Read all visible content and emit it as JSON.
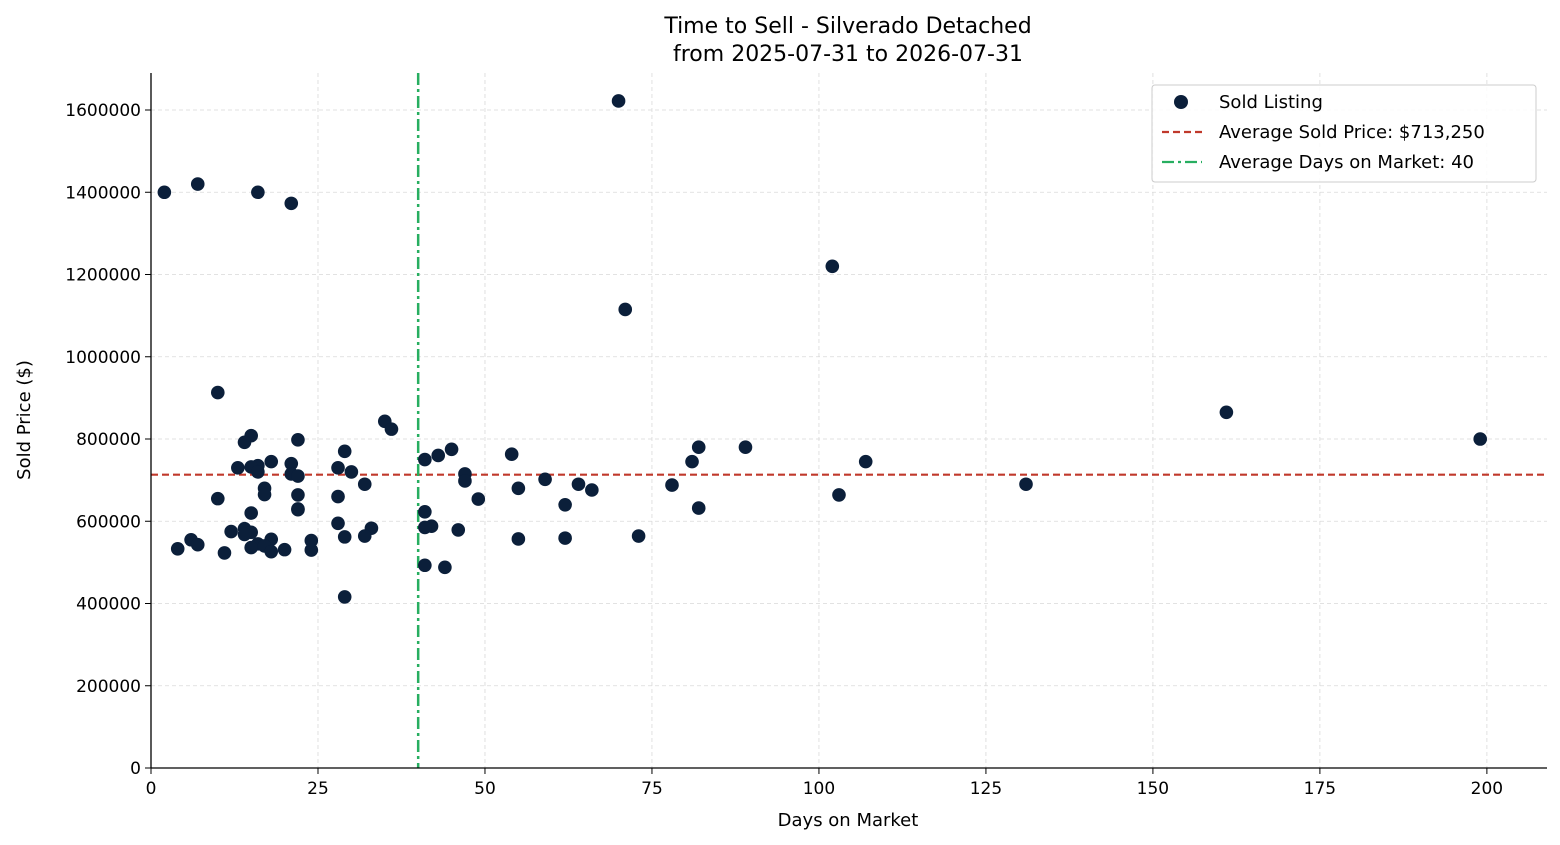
{
  "colors": {
    "points": "#0b1f3a",
    "avg_price_line": "#c0392b",
    "avg_days_line": "#27ae60",
    "grid": "#d9d9d9",
    "axis": "#000000"
  },
  "chart_data": {
    "type": "scatter",
    "title": "Time to Sell - Silverado Detached",
    "subtitle": "from 2025-07-31 to 2026-07-31",
    "xlabel": "Days on Market",
    "ylabel": "Sold Price ($)",
    "xlim": [
      0,
      209
    ],
    "ylim": [
      0,
      1690000
    ],
    "x_ticks": [
      0,
      25,
      50,
      75,
      100,
      125,
      150,
      175,
      200
    ],
    "y_ticks": [
      0,
      200000,
      400000,
      600000,
      800000,
      1000000,
      1200000,
      1400000,
      1600000
    ],
    "grid": true,
    "legend_position": "top-right",
    "series": [
      {
        "name": "Sold Listing",
        "points": [
          [
            2,
            1400000
          ],
          [
            7,
            1420000
          ],
          [
            16,
            1400000
          ],
          [
            21,
            1373000
          ],
          [
            70,
            1622000
          ],
          [
            71,
            1115000
          ],
          [
            102,
            1220000
          ],
          [
            10,
            913000
          ],
          [
            35,
            843000
          ],
          [
            36,
            824000
          ],
          [
            15,
            808000
          ],
          [
            22,
            798000
          ],
          [
            14,
            792000
          ],
          [
            29,
            770000
          ],
          [
            18,
            745000
          ],
          [
            16,
            735000
          ],
          [
            15,
            732000
          ],
          [
            13,
            730000
          ],
          [
            21,
            740000
          ],
          [
            28,
            730000
          ],
          [
            30,
            720000
          ],
          [
            16,
            720000
          ],
          [
            21,
            715000
          ],
          [
            22,
            710000
          ],
          [
            17,
            680000
          ],
          [
            17,
            665000
          ],
          [
            10,
            655000
          ],
          [
            22,
            664000
          ],
          [
            28,
            660000
          ],
          [
            32,
            690000
          ],
          [
            22,
            630000
          ],
          [
            22,
            628000
          ],
          [
            15,
            620000
          ],
          [
            28,
            595000
          ],
          [
            33,
            583000
          ],
          [
            14,
            582000
          ],
          [
            12,
            575000
          ],
          [
            15,
            573000
          ],
          [
            14,
            568000
          ],
          [
            29,
            562000
          ],
          [
            32,
            564000
          ],
          [
            6,
            555000
          ],
          [
            18,
            556000
          ],
          [
            24,
            553000
          ],
          [
            7,
            543000
          ],
          [
            16,
            545000
          ],
          [
            17,
            540000
          ],
          [
            15,
            536000
          ],
          [
            20,
            531000
          ],
          [
            24,
            530000
          ],
          [
            4,
            533000
          ],
          [
            18,
            526000
          ],
          [
            11,
            523000
          ],
          [
            29,
            416000
          ],
          [
            41,
            750000
          ],
          [
            43,
            760000
          ],
          [
            45,
            775000
          ],
          [
            47,
            715000
          ],
          [
            47,
            698000
          ],
          [
            49,
            654000
          ],
          [
            41,
            623000
          ],
          [
            42,
            588000
          ],
          [
            41,
            585000
          ],
          [
            46,
            579000
          ],
          [
            41,
            493000
          ],
          [
            44,
            488000
          ],
          [
            54,
            763000
          ],
          [
            55,
            680000
          ],
          [
            59,
            702000
          ],
          [
            55,
            557000
          ],
          [
            62,
            640000
          ],
          [
            64,
            690000
          ],
          [
            66,
            676000
          ],
          [
            62,
            559000
          ],
          [
            73,
            564000
          ],
          [
            78,
            688000
          ],
          [
            81,
            745000
          ],
          [
            82,
            780000
          ],
          [
            89,
            780000
          ],
          [
            82,
            632000
          ],
          [
            103,
            664000
          ],
          [
            107,
            745000
          ],
          [
            131,
            690000
          ],
          [
            161,
            865000
          ],
          [
            199,
            800000
          ]
        ]
      }
    ],
    "reference_lines": [
      {
        "orientation": "horizontal",
        "value": 713250,
        "style": "dashed",
        "label": "Average Sold Price: $713,250"
      },
      {
        "orientation": "vertical",
        "value": 40,
        "style": "dash-dot",
        "label": "Average Days on Market: 40"
      }
    ]
  }
}
